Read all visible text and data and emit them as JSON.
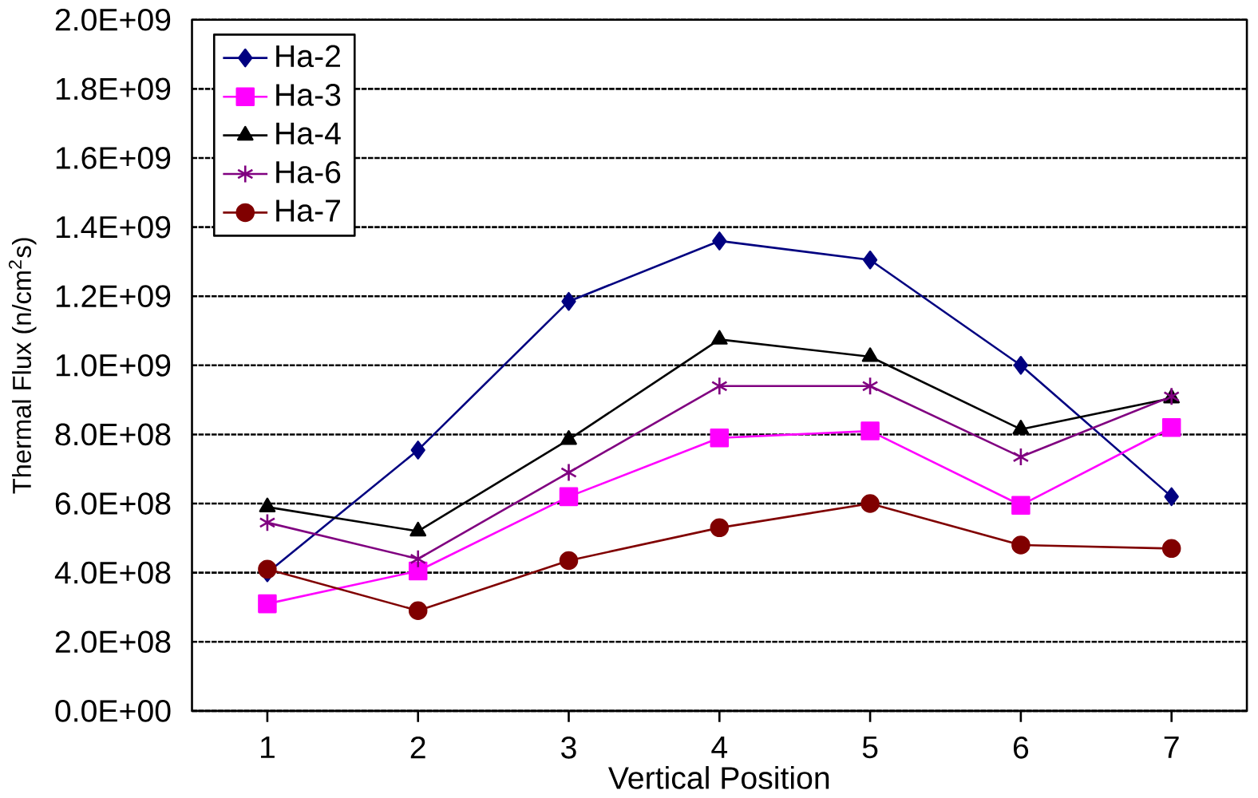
{
  "chart_data": {
    "type": "line",
    "xlabel": "Vertical Position",
    "ylabel": "Thermal Flux (n/cm$^{2}$s)",
    "x": [
      1,
      2,
      3,
      4,
      5,
      6,
      7
    ],
    "xlim": [
      0.5,
      7.5
    ],
    "xticks": [
      1,
      2,
      3,
      4,
      5,
      6,
      7
    ],
    "ylim": [
      0,
      2000000000
    ],
    "yticks": [
      {
        "value": 0,
        "label": "0.0E+00"
      },
      {
        "value": 200000000,
        "label": "2.0E+08"
      },
      {
        "value": 400000000,
        "label": "4.0E+08"
      },
      {
        "value": 600000000,
        "label": "6.0E+08"
      },
      {
        "value": 800000000,
        "label": "8.0E+08"
      },
      {
        "value": 1000000000,
        "label": "1.0E+09"
      },
      {
        "value": 1200000000,
        "label": "1.2E+09"
      },
      {
        "value": 1400000000,
        "label": "1.4E+09"
      },
      {
        "value": 1600000000,
        "label": "1.6E+09"
      },
      {
        "value": 1800000000,
        "label": "1.8E+09"
      },
      {
        "value": 2000000000,
        "label": "2.0E+09"
      }
    ],
    "grid": "y",
    "legend": "top left",
    "series": [
      {
        "name": "Ha-2",
        "color": "#000080",
        "marker": "diamond",
        "values": [
          400000000,
          755000000,
          1185000000,
          1360000000,
          1305000000,
          1000000000,
          620000000
        ]
      },
      {
        "name": "Ha-3",
        "color": "#ff00ff",
        "marker": "square",
        "values": [
          310000000,
          405000000,
          620000000,
          790000000,
          810000000,
          595000000,
          820000000
        ]
      },
      {
        "name": "Ha-4",
        "color": "#000000",
        "marker": "triangle",
        "values": [
          590000000,
          520000000,
          785000000,
          1075000000,
          1025000000,
          815000000,
          905000000
        ]
      },
      {
        "name": "Ha-6",
        "color": "#800080",
        "marker": "cross",
        "values": [
          545000000,
          440000000,
          690000000,
          940000000,
          940000000,
          735000000,
          910000000
        ]
      },
      {
        "name": "Ha-7",
        "color": "#800000",
        "marker": "circle",
        "values": [
          410000000,
          290000000,
          435000000,
          530000000,
          600000000,
          480000000,
          470000000
        ]
      }
    ]
  }
}
